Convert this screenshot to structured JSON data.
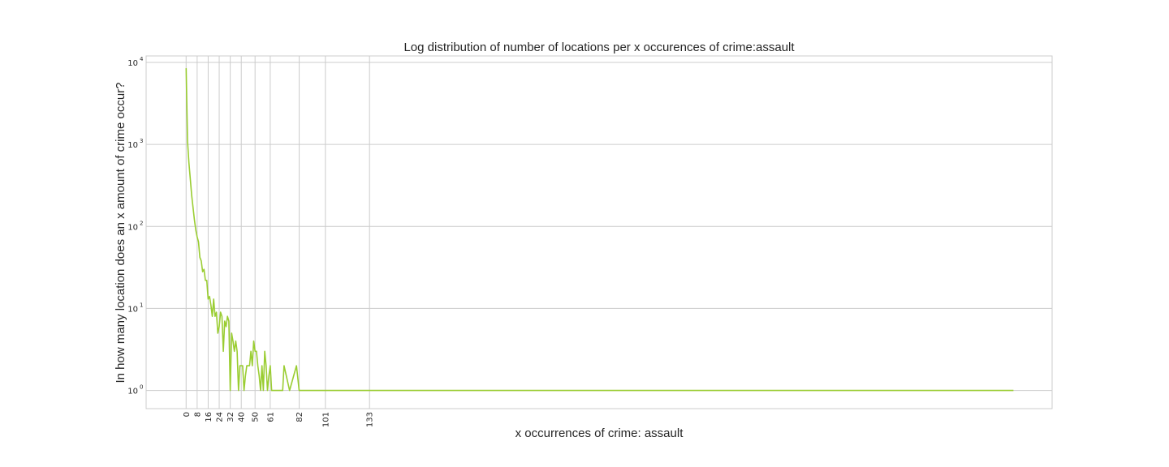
{
  "chart_data": {
    "type": "line",
    "title": "Log distribution of number of locations per x occurences of crime:assault",
    "xlabel": "x occurrences of crime: assault",
    "ylabel": "In how many location does an x amount of crime occur?",
    "yscale": "log",
    "ylim": [
      0.6,
      12000
    ],
    "xlim": [
      -29,
      628
    ],
    "grid": true,
    "xticks": [
      0,
      8,
      16,
      24,
      32,
      40,
      50,
      61,
      82,
      101,
      133
    ],
    "yticks": [
      {
        "base": "10",
        "exp": "0",
        "value": 1
      },
      {
        "base": "10",
        "exp": "1",
        "value": 10
      },
      {
        "base": "10",
        "exp": "2",
        "value": 100
      },
      {
        "base": "10",
        "exp": "3",
        "value": 1000
      },
      {
        "base": "10",
        "exp": "4",
        "value": 10000
      }
    ],
    "series": [
      {
        "color": "#9acd32",
        "x": [
          0,
          1,
          2,
          3,
          4,
          5,
          6,
          7,
          8,
          9,
          10,
          11,
          12,
          13,
          14,
          15,
          16,
          17,
          18,
          19,
          20,
          21,
          22,
          23,
          24,
          25,
          26,
          27,
          28,
          29,
          30,
          31,
          32,
          33,
          34,
          35,
          36,
          37,
          38,
          39,
          40,
          41,
          42,
          43,
          44,
          45,
          46,
          47,
          48,
          49,
          50,
          51,
          52,
          53,
          54,
          55,
          56,
          57,
          58,
          59,
          60,
          61,
          62,
          63,
          65,
          67,
          70,
          71,
          75,
          80,
          82,
          84,
          87,
          92,
          95,
          100,
          110,
          133,
          200,
          300,
          400,
          500,
          600
        ],
        "y": [
          8500,
          1100,
          600,
          380,
          240,
          170,
          120,
          90,
          75,
          65,
          42,
          38,
          28,
          30,
          22,
          22,
          13,
          14,
          11,
          8,
          13,
          8,
          9,
          5,
          6,
          9,
          8,
          3,
          7,
          6,
          8,
          7,
          1,
          5,
          4,
          3,
          4,
          3,
          1,
          2,
          2,
          2,
          1,
          1.5,
          2,
          2,
          2,
          3,
          2,
          4,
          3,
          3,
          2,
          1.5,
          1,
          2,
          1,
          3,
          2,
          1,
          1.5,
          2,
          1,
          1,
          1,
          1,
          1,
          2,
          1,
          2,
          1,
          1,
          1,
          1,
          1,
          1,
          1,
          1,
          1,
          1,
          1,
          1,
          1
        ]
      }
    ]
  }
}
